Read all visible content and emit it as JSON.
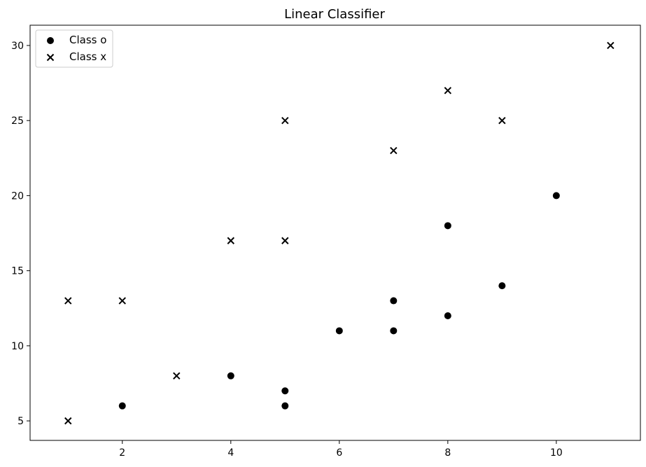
{
  "chart_data": {
    "type": "scatter",
    "title": "Linear Classifier",
    "xlabel": "",
    "ylabel": "",
    "xlim": [
      0.3,
      11.55
    ],
    "ylim": [
      3.7,
      31.35
    ],
    "xticks": [
      2,
      4,
      6,
      8,
      10
    ],
    "yticks": [
      5,
      10,
      15,
      20,
      25,
      30
    ],
    "grid": false,
    "legend_position": "upper-left",
    "series": [
      {
        "name": "Class o",
        "marker": "circle",
        "color": "#000000",
        "points": [
          {
            "x": 2,
            "y": 6
          },
          {
            "x": 4,
            "y": 8
          },
          {
            "x": 5,
            "y": 7
          },
          {
            "x": 5,
            "y": 6
          },
          {
            "x": 6,
            "y": 11
          },
          {
            "x": 7,
            "y": 13
          },
          {
            "x": 7,
            "y": 11
          },
          {
            "x": 8,
            "y": 18
          },
          {
            "x": 8,
            "y": 12
          },
          {
            "x": 9,
            "y": 14
          },
          {
            "x": 10,
            "y": 20
          }
        ]
      },
      {
        "name": "Class x",
        "marker": "x",
        "color": "#000000",
        "points": [
          {
            "x": 1,
            "y": 13
          },
          {
            "x": 1,
            "y": 5
          },
          {
            "x": 2,
            "y": 13
          },
          {
            "x": 3,
            "y": 8
          },
          {
            "x": 4,
            "y": 17
          },
          {
            "x": 5,
            "y": 17
          },
          {
            "x": 5,
            "y": 25
          },
          {
            "x": 7,
            "y": 23
          },
          {
            "x": 8,
            "y": 27
          },
          {
            "x": 9,
            "y": 25
          },
          {
            "x": 11,
            "y": 30
          }
        ]
      }
    ]
  }
}
